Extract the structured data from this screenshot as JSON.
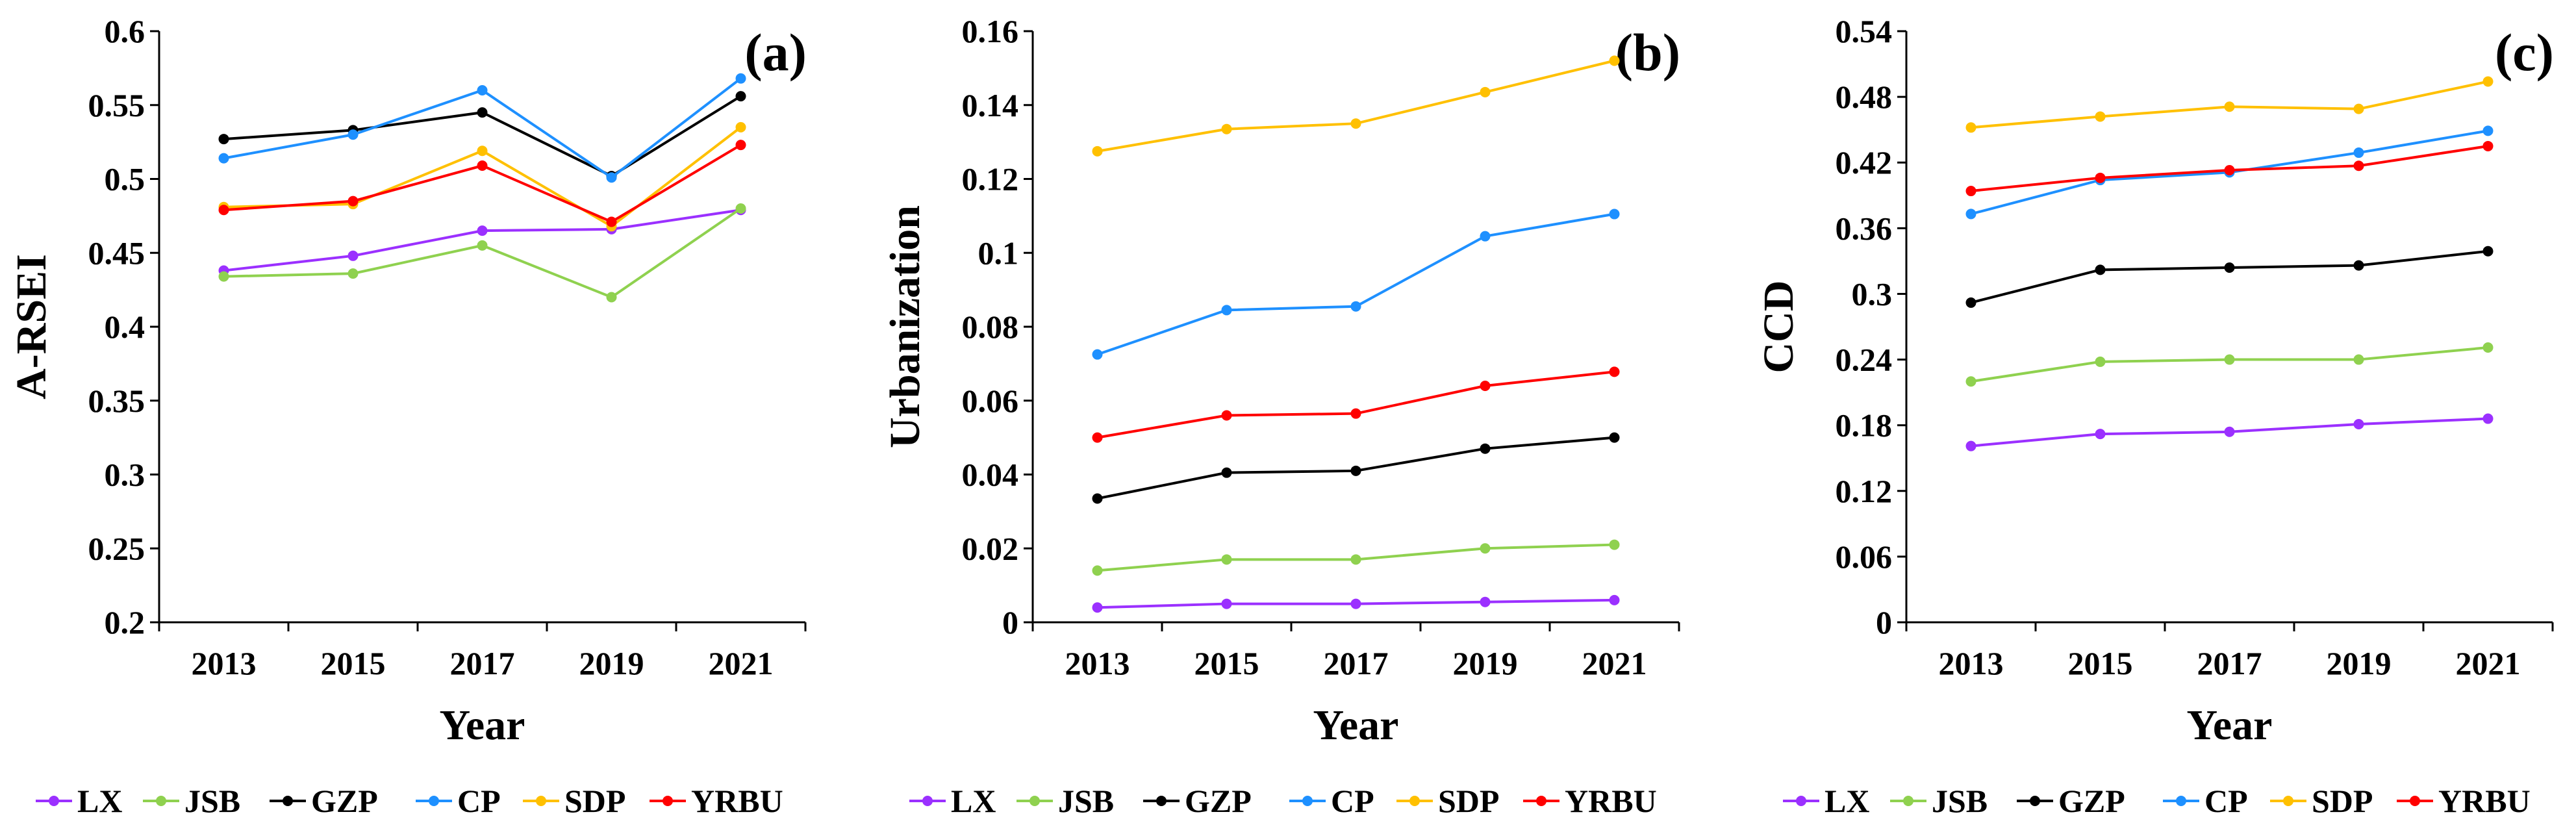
{
  "chart_data": [
    {
      "type": "line",
      "panel_label": "(a)",
      "xlabel": "Year",
      "ylabel": "A-RSEI",
      "x": [
        "2013",
        "2015",
        "2017",
        "2019",
        "2021"
      ],
      "ylim": [
        0.2,
        0.6
      ],
      "yticks": [
        "0.2",
        "0.25",
        "0.3",
        "0.35",
        "0.4",
        "0.45",
        "0.5",
        "0.55",
        "0.6"
      ],
      "series": [
        {
          "name": "LX",
          "color": "#9B30FF",
          "values": [
            0.438,
            0.448,
            0.465,
            0.466,
            0.479
          ]
        },
        {
          "name": "JSB",
          "color": "#8FD14F",
          "values": [
            0.434,
            0.436,
            0.455,
            0.42,
            0.48
          ]
        },
        {
          "name": "GZP",
          "color": "#000000",
          "values": [
            0.527,
            0.533,
            0.545,
            0.502,
            0.556
          ]
        },
        {
          "name": "CP",
          "color": "#1E90FF",
          "values": [
            0.514,
            0.53,
            0.56,
            0.501,
            0.568
          ]
        },
        {
          "name": "SDP",
          "color": "#FFC000",
          "values": [
            0.481,
            0.483,
            0.519,
            0.468,
            0.535
          ]
        },
        {
          "name": "YRBU",
          "color": "#FF0000",
          "values": [
            0.479,
            0.485,
            0.509,
            0.471,
            0.523
          ]
        }
      ],
      "legend": "bottom"
    },
    {
      "type": "line",
      "panel_label": "(b)",
      "xlabel": "Year",
      "ylabel": "Urbanization",
      "x": [
        "2013",
        "2015",
        "2017",
        "2019",
        "2021"
      ],
      "ylim": [
        0,
        0.16
      ],
      "yticks": [
        "0",
        "0.02",
        "0.04",
        "0.06",
        "0.08",
        "0.1",
        "0.12",
        "0.14",
        "0.16"
      ],
      "series": [
        {
          "name": "LX",
          "color": "#9B30FF",
          "values": [
            0.004,
            0.005,
            0.005,
            0.0055,
            0.006
          ]
        },
        {
          "name": "JSB",
          "color": "#8FD14F",
          "values": [
            0.014,
            0.017,
            0.017,
            0.02,
            0.021
          ]
        },
        {
          "name": "GZP",
          "color": "#000000",
          "values": [
            0.0335,
            0.0405,
            0.041,
            0.047,
            0.05
          ]
        },
        {
          "name": "CP",
          "color": "#1E90FF",
          "values": [
            0.0725,
            0.0845,
            0.0855,
            0.1045,
            0.1105
          ]
        },
        {
          "name": "SDP",
          "color": "#FFC000",
          "values": [
            0.1275,
            0.1335,
            0.135,
            0.1435,
            0.152
          ]
        },
        {
          "name": "YRBU",
          "color": "#FF0000",
          "values": [
            0.05,
            0.056,
            0.0565,
            0.064,
            0.0678
          ]
        }
      ],
      "legend": "bottom"
    },
    {
      "type": "line",
      "panel_label": "(c)",
      "xlabel": "Year",
      "ylabel": "CCD",
      "x": [
        "2013",
        "2015",
        "2017",
        "2019",
        "2021"
      ],
      "ylim": [
        0,
        0.54
      ],
      "yticks": [
        "0",
        "0.06",
        "0.12",
        "0.18",
        "0.24",
        "0.3",
        "0.36",
        "0.42",
        "0.48",
        "0.54"
      ],
      "series": [
        {
          "name": "LX",
          "color": "#9B30FF",
          "values": [
            0.161,
            0.172,
            0.174,
            0.181,
            0.186
          ]
        },
        {
          "name": "JSB",
          "color": "#8FD14F",
          "values": [
            0.22,
            0.238,
            0.24,
            0.24,
            0.251
          ]
        },
        {
          "name": "GZP",
          "color": "#000000",
          "values": [
            0.292,
            0.322,
            0.324,
            0.326,
            0.339
          ]
        },
        {
          "name": "CP",
          "color": "#1E90FF",
          "values": [
            0.373,
            0.404,
            0.411,
            0.429,
            0.449
          ]
        },
        {
          "name": "SDP",
          "color": "#FFC000",
          "values": [
            0.452,
            0.462,
            0.471,
            0.469,
            0.494
          ]
        },
        {
          "name": "YRBU",
          "color": "#FF0000",
          "values": [
            0.394,
            0.406,
            0.413,
            0.417,
            0.435
          ]
        }
      ],
      "legend": "bottom"
    }
  ]
}
